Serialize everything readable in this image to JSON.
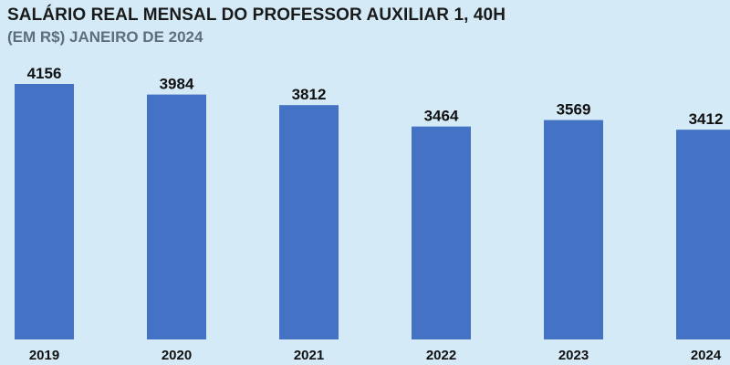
{
  "chart_data": {
    "type": "bar",
    "title": "SALÁRIO REAL MENSAL DO PROFESSOR AUXILIAR 1, 40H",
    "subtitle": "(EM R$) JANEIRO DE 2024",
    "categories": [
      "2019",
      "2020",
      "2021",
      "2022",
      "2023",
      "2024"
    ],
    "values": [
      4156,
      3984,
      3812,
      3464,
      3569,
      3412
    ],
    "xlabel": "",
    "ylabel": "",
    "grid": false,
    "legend": "none",
    "bar_color": "#4472c4",
    "background_color": "#d4ebf7"
  }
}
